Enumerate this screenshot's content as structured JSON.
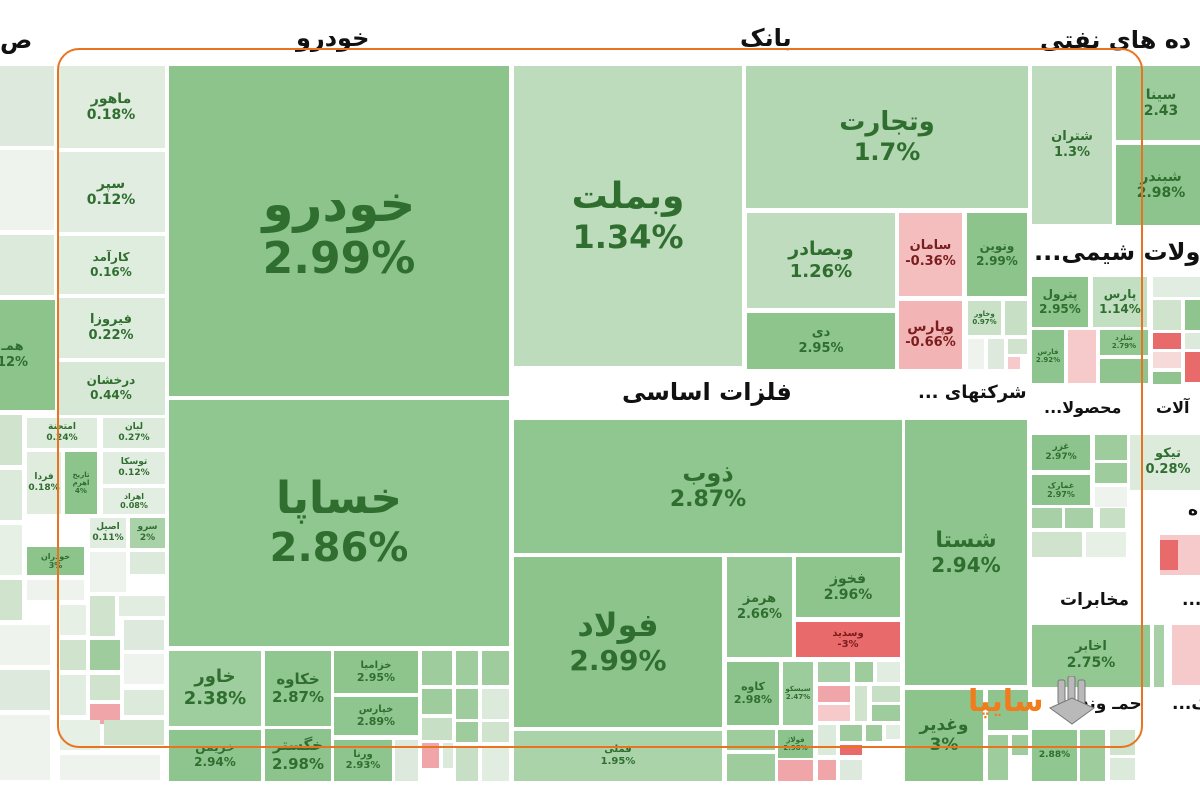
{
  "headers": {
    "left_cut": "ص",
    "khodro": "خودرو",
    "bank": "بانک",
    "oil": "ده های نفتی",
    "metals": "فلزات اساسی",
    "holding": "شرکتهای ...",
    "chemical": "ولات شیمی...",
    "products": "محصولا...",
    "machinery": "آلات",
    "telecom": "مخابرات",
    "transport": "حمـ  ونقل",
    "dots1": "...",
    "dots2": "ک...",
    "right_cut": "ه"
  },
  "tiles": [
    {
      "name": "ماهور",
      "pct": "0.18%",
      "value": 0.18
    },
    {
      "name": "سپر",
      "pct": "0.12%",
      "value": 0.12
    },
    {
      "name": "کارآمد",
      "pct": "0.16%",
      "value": 0.16
    },
    {
      "name": "فیروزا",
      "pct": "0.22%",
      "value": 0.22
    },
    {
      "name": "درخشان",
      "pct": "0.44%",
      "value": 0.44
    },
    {
      "name": "امتحنة",
      "pct": "0.24%",
      "value": 0.24
    },
    {
      "name": "لبان",
      "pct": "0.27%",
      "value": 0.27
    },
    {
      "name": "فردا",
      "pct": "0.18%",
      "value": 0.18
    },
    {
      "name": "تاریخ اهرم",
      "pct": "4%",
      "value": 4
    },
    {
      "name": "توسکا",
      "pct": "0.12%",
      "value": 0.12
    },
    {
      "name": "اهراد",
      "pct": "0.08%",
      "value": 0.08
    },
    {
      "name": "خودران",
      "pct": "3%",
      "value": 3
    },
    {
      "name": "اصیل",
      "pct": "0.11%",
      "value": 0.11
    },
    {
      "name": "سرو",
      "pct": "2%",
      "value": 2
    },
    {
      "name": "خودرو",
      "pct": "2.99%",
      "value": 2.99
    },
    {
      "name": "خساپا",
      "pct": "2.86%",
      "value": 2.86
    },
    {
      "name": "خاور",
      "pct": "2.38%",
      "value": 2.38
    },
    {
      "name": "خکاوه",
      "pct": "2.87%",
      "value": 2.87
    },
    {
      "name": "خزامیا",
      "pct": "2.95%",
      "value": 2.95
    },
    {
      "name": "خپارس",
      "pct": "2.89%",
      "value": 2.89
    },
    {
      "name": "خریمن",
      "pct": "2.94%",
      "value": 2.94
    },
    {
      "name": "خگستر",
      "pct": "2.98%",
      "value": 2.98
    },
    {
      "name": "ورنا",
      "pct": "2.93%",
      "value": 2.93
    },
    {
      "name": "وبملت",
      "pct": "1.34%",
      "value": 1.34
    },
    {
      "name": "وتجارت",
      "pct": "1.7%",
      "value": 1.7
    },
    {
      "name": "وبصادر",
      "pct": "1.26%",
      "value": 1.26
    },
    {
      "name": "سامان",
      "pct": "-0.36%",
      "value": -0.36
    },
    {
      "name": "ونوین",
      "pct": "2.99%",
      "value": 2.99
    },
    {
      "name": "دی",
      "pct": "2.95%",
      "value": 2.95
    },
    {
      "name": "وپارس",
      "pct": "-0.66%",
      "value": -0.66
    },
    {
      "name": "وخاور",
      "pct": "0.97%",
      "value": 0.97
    },
    {
      "name": "ذوب",
      "pct": "2.87%",
      "value": 2.87
    },
    {
      "name": "فولاد",
      "pct": "2.99%",
      "value": 2.99
    },
    {
      "name": "فملی",
      "pct": "1.95%",
      "value": 1.95
    },
    {
      "name": "شستا",
      "pct": "2.94%",
      "value": 2.94
    },
    {
      "name": "هرمز",
      "pct": "2.66%",
      "value": 2.66
    },
    {
      "name": "فخوز",
      "pct": "2.96%",
      "value": 2.96
    },
    {
      "name": "وسدید",
      "pct": "-3%",
      "value": -3
    },
    {
      "name": "کاوه",
      "pct": "2.98%",
      "value": 2.98
    },
    {
      "name": "سیسکو",
      "pct": "2.47%",
      "value": 2.47
    },
    {
      "name": "فولاژ",
      "pct": "2.98%",
      "value": 2.98
    },
    {
      "name": "وغدیر",
      "pct": "3%",
      "value": 3
    },
    {
      "name": "شتران",
      "pct": "1.3%",
      "value": 1.3
    },
    {
      "name": "سینا",
      "pct": "2.43",
      "value": 2.43
    },
    {
      "name": "شبندر",
      "pct": "2.98%",
      "value": 2.98
    },
    {
      "name": "پترول",
      "pct": "2.95%",
      "value": 2.95
    },
    {
      "name": "پارس",
      "pct": "1.14%",
      "value": 1.14
    },
    {
      "name": "فارس",
      "pct": "2.92%",
      "value": 2.92
    },
    {
      "name": "شلرد",
      "pct": "2.79%",
      "value": 2.79
    },
    {
      "name": "غزر",
      "pct": "2.97%",
      "value": 2.97
    },
    {
      "name": "غمارک",
      "pct": "2.97%",
      "value": 2.97
    },
    {
      "name": "تیکو",
      "pct": "0.28%",
      "value": 0.28
    },
    {
      "name": "اخابر",
      "pct": "2.75%",
      "value": 2.75
    },
    {
      "name": "",
      "pct": "2.88%",
      "value": 2.88
    },
    {
      "name": "همـ",
      "pct": "12%",
      "value": 12
    }
  ],
  "logo": {
    "text": "سایپا"
  },
  "colors": {
    "up_strong": "#8cc48c",
    "up_weak": "#e4efe3",
    "down_strong": "#e86a6a",
    "down_weak": "#f6c9cb",
    "frame": "#e8741f",
    "text_up": "#2f6e2f",
    "text_down": "#7a1d1d"
  }
}
